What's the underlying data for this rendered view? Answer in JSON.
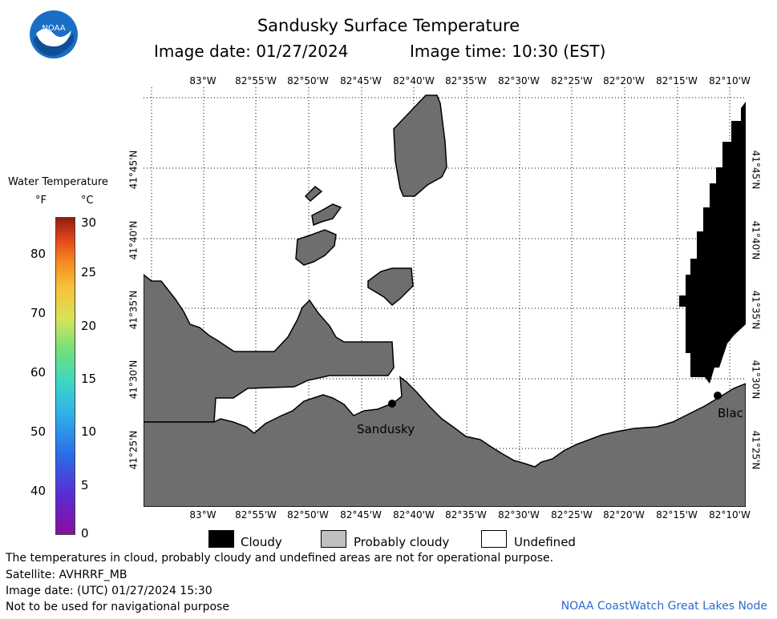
{
  "header": {
    "title": "Sandusky Surface Temperature",
    "image_date": "Image date: 01/27/2024",
    "image_time": "Image time: 10:30 (EST)"
  },
  "logo": {
    "text": "NOAA"
  },
  "map": {
    "lon_labels": [
      "83°W",
      "82°55'W",
      "82°50'W",
      "82°45'W",
      "82°40'W",
      "82°35'W",
      "82°30'W",
      "82°25'W",
      "82°20'W",
      "82°15'W",
      "82°10'W"
    ],
    "lat_labels": [
      "41°45'N",
      "41°40'N",
      "41°35'N",
      "41°30'N",
      "41°25'N"
    ],
    "places": [
      {
        "name": "Sandusky"
      },
      {
        "name": "Blac"
      }
    ],
    "colors": {
      "land": "#6e6e6e",
      "cloudy": "#000000",
      "water": "#ffffff",
      "probably_cloudy": "#c0c0c0"
    }
  },
  "legend": {
    "title": "Water Temperature",
    "unit_f": "°F",
    "unit_c": "°C",
    "f_ticks": [
      "80",
      "70",
      "60",
      "50",
      "40"
    ],
    "c_ticks": [
      "30",
      "25",
      "20",
      "15",
      "10",
      "5",
      "0"
    ]
  },
  "key": {
    "cloudy": "Cloudy",
    "probably_cloudy": "Probably cloudy",
    "undefined": "Undefined"
  },
  "footer": {
    "note": "The temperatures in cloud, probably cloudy and undefined areas are not for operational purpose.",
    "satellite": "Satellite: AVHRRF_MB",
    "utc_date": "Image date: (UTC) 01/27/2024  15:30",
    "nav_warning": "Not to be used for navigational purpose",
    "node": "NOAA CoastWatch Great Lakes Node"
  }
}
